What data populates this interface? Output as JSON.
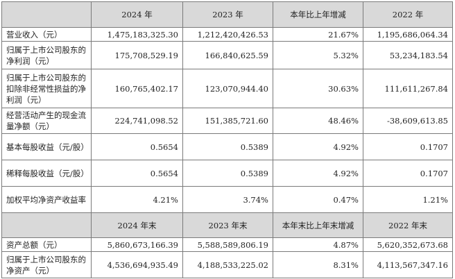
{
  "header": {
    "label_col": "",
    "col1": "2024 年",
    "col2": "2023 年",
    "col3": "本年比上年增减",
    "col4": "2022 年"
  },
  "rows": [
    {
      "label": "营业收入（元）",
      "v2024": "1,475,183,325.30",
      "v2023": "1,212,420,426.53",
      "change": "21.67%",
      "v2022": "1,195,686,064.34"
    },
    {
      "label": "归属于上市公司股东的净利润（元）",
      "v2024": "175,708,529.19",
      "v2023": "166,840,625.59",
      "change": "5.32%",
      "v2022": "53,234,183.54"
    },
    {
      "label": "归属于上市公司股东的扣除非经常性损益的净利润（元）",
      "v2024": "160,765,402.17",
      "v2023": "123,070,944.40",
      "change": "30.63%",
      "v2022": "111,611,267.84"
    },
    {
      "label": "经营活动产生的现金流量净额（元）",
      "v2024": "224,741,098.52",
      "v2023": "151,385,721.60",
      "change": "48.46%",
      "v2022": "-38,609,613.85"
    },
    {
      "label": "基本每股收益（元/股）",
      "v2024": "0.5654",
      "v2023": "0.5389",
      "change": "4.92%",
      "v2022": "0.1707"
    },
    {
      "label": "稀释每股收益（元/股）",
      "v2024": "0.5654",
      "v2023": "0.5389",
      "change": "4.92%",
      "v2022": "0.1707"
    },
    {
      "label": "加权平均净资产收益率",
      "v2024": "4.21%",
      "v2023": "3.74%",
      "change": "0.47%",
      "v2022": "1.21%"
    }
  ],
  "subheader": {
    "label_col": "",
    "col1": "2024 年末",
    "col2": "2023 年末",
    "col3": "本年末比上年末增减",
    "col4": "2022 年末"
  },
  "rows2": [
    {
      "label": "资产总额（元）",
      "v2024": "5,860,673,166.39",
      "v2023": "5,588,589,806.19",
      "change": "4.87%",
      "v2022": "5,620,352,673.68"
    },
    {
      "label": "归属于上市公司股东的净资产（元）",
      "v2024": "4,536,694,935.49",
      "v2023": "4,188,533,225.02",
      "change": "8.31%",
      "v2022": "4,113,567,347.16"
    }
  ]
}
